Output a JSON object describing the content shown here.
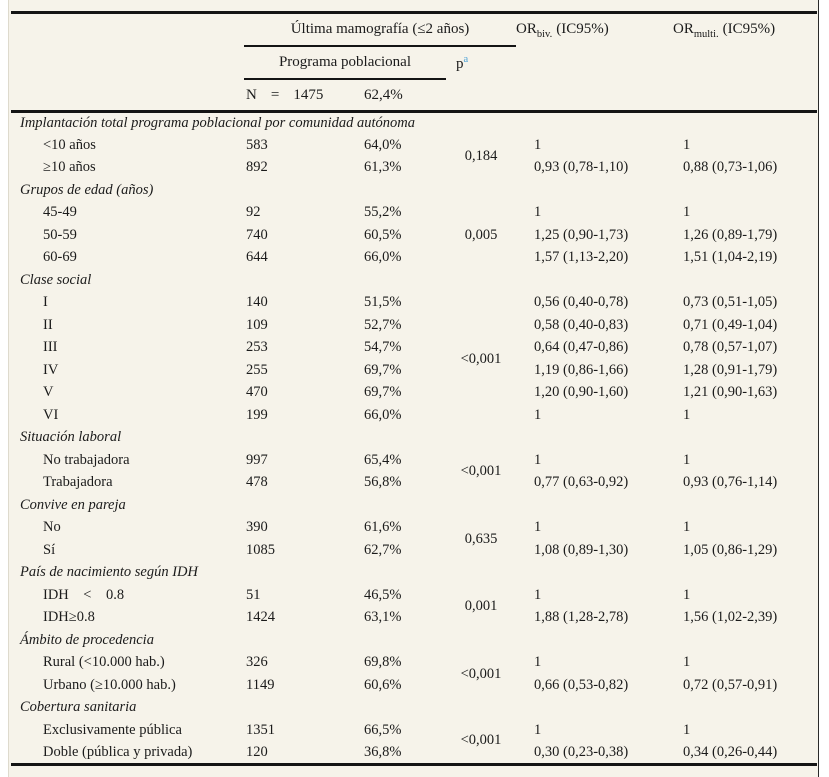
{
  "page": {
    "sheet_background": "#f6f3ea",
    "rule_color": "#141414",
    "text_color": "#1b1b1b",
    "footnote_color": "#4aa0d6"
  },
  "header": {
    "mammography_group": "Última mamografía (≤2 años)",
    "program_label": "Programa poblacional",
    "p_label": "p",
    "p_footnote_mark": "a",
    "n_label": "N",
    "n_eq": "=",
    "n_value": "1475",
    "n_pct": "62,4%",
    "or_label": "OR",
    "or_biv_sub": "biv.",
    "or_multi_sub": "multi.",
    "ci_label": "(IC95%)"
  },
  "table": {
    "groups": [
      {
        "label": "Implantación total programa poblacional por comunidad autónoma",
        "p": "0,184",
        "rows": [
          {
            "label": "<10 años",
            "n": "583",
            "pct": "64,0%",
            "or_biv": "1",
            "or_multi": "1"
          },
          {
            "label": "≥10 años",
            "n": "892",
            "pct": "61,3%",
            "or_biv": "0,93 (0,78-1,10)",
            "or_multi": "0,88 (0,73-1,06)"
          }
        ]
      },
      {
        "label": "Grupos de edad (años)",
        "p": "0,005",
        "rows": [
          {
            "label": "45-49",
            "n": "92",
            "pct": "55,2%",
            "or_biv": "1",
            "or_multi": "1"
          },
          {
            "label": "50-59",
            "n": "740",
            "pct": "60,5%",
            "or_biv": "1,25 (0,90-1,73)",
            "or_multi": "1,26 (0,89-1,79)"
          },
          {
            "label": "60-69",
            "n": "644",
            "pct": "66,0%",
            "or_biv": "1,57 (1,13-2,20)",
            "or_multi": "1,51 (1,04-2,19)"
          }
        ]
      },
      {
        "label": "Clase social",
        "p": "<0,001",
        "rows": [
          {
            "label": "I",
            "n": "140",
            "pct": "51,5%",
            "or_biv": "0,56 (0,40-0,78)",
            "or_multi": "0,73 (0,51-1,05)"
          },
          {
            "label": "II",
            "n": "109",
            "pct": "52,7%",
            "or_biv": "0,58 (0,40-0,83)",
            "or_multi": "0,71 (0,49-1,04)"
          },
          {
            "label": "III",
            "n": "253",
            "pct": "54,7%",
            "or_biv": "0,64 (0,47-0,86)",
            "or_multi": "0,78 (0,57-1,07)"
          },
          {
            "label": "IV",
            "n": "255",
            "pct": "69,7%",
            "or_biv": "1,19 (0,86-1,66)",
            "or_multi": "1,28 (0,91-1,79)"
          },
          {
            "label": "V",
            "n": "470",
            "pct": "69,7%",
            "or_biv": "1,20 (0,90-1,60)",
            "or_multi": "1,21 (0,90-1,63)"
          },
          {
            "label": "VI",
            "n": "199",
            "pct": "66,0%",
            "or_biv": "1",
            "or_multi": "1"
          }
        ]
      },
      {
        "label": "Situación laboral",
        "p": "<0,001",
        "rows": [
          {
            "label": "No trabajadora",
            "n": "997",
            "pct": "65,4%",
            "or_biv": "1",
            "or_multi": "1"
          },
          {
            "label": "Trabajadora",
            "n": "478",
            "pct": "56,8%",
            "or_biv": "0,77 (0,63-0,92)",
            "or_multi": "0,93 (0,76-1,14)"
          }
        ]
      },
      {
        "label": "Convive en pareja",
        "p": "0,635",
        "rows": [
          {
            "label": "No",
            "n": "390",
            "pct": "61,6%",
            "or_biv": "1",
            "or_multi": "1"
          },
          {
            "label": "Sí",
            "n": "1085",
            "pct": "62,7%",
            "or_biv": "1,08 (0,89-1,30)",
            "or_multi": "1,05 (0,86-1,29)"
          }
        ]
      },
      {
        "label": "País de nacimiento según IDH",
        "p": "0,001",
        "rows": [
          {
            "label": "IDH    <    0.8",
            "n": "51",
            "pct": "46,5%",
            "or_biv": "1",
            "or_multi": "1"
          },
          {
            "label": "IDH≥0.8",
            "n": "1424",
            "pct": "63,1%",
            "or_biv": "1,88 (1,28-2,78)",
            "or_multi": "1,56 (1,02-2,39)"
          }
        ]
      },
      {
        "label": "Ámbito de procedencia",
        "p": "<0,001",
        "rows": [
          {
            "label": "Rural (<10.000 hab.)",
            "n": "326",
            "pct": "69,8%",
            "or_biv": "1",
            "or_multi": "1"
          },
          {
            "label": "Urbano (≥10.000 hab.)",
            "n": "1149",
            "pct": "60,6%",
            "or_biv": "0,66 (0,53-0,82)",
            "or_multi": "0,72 (0,57-0,91)"
          }
        ]
      },
      {
        "label": "Cobertura sanitaria",
        "p": "<0,001",
        "rows": [
          {
            "label": "Exclusivamente pública",
            "n": "1351",
            "pct": "66,5%",
            "or_biv": "1",
            "or_multi": "1"
          },
          {
            "label": "Doble (pública y privada)",
            "n": "120",
            "pct": "36,8%",
            "or_biv": "0,30 (0,23-0,38)",
            "or_multi": "0,34 (0,26-0,44)"
          }
        ]
      }
    ]
  }
}
